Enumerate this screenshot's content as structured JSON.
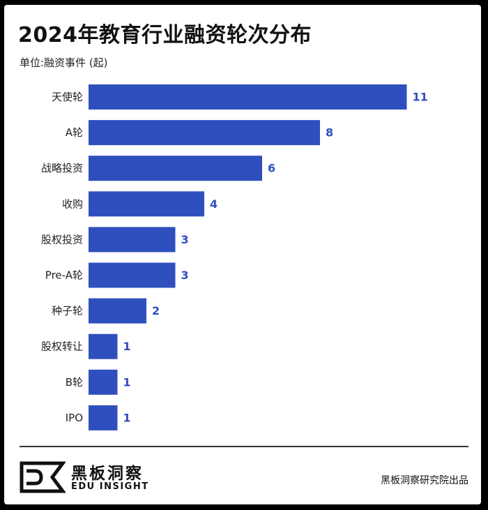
{
  "header": {
    "title": "2024年教育行业融资轮次分布",
    "unit": "单位:融资事件 (起)"
  },
  "chart_data": {
    "type": "bar",
    "orientation": "horizontal",
    "title": "2024年教育行业融资轮次分布",
    "ylabel": "单位:融资事件 (起)",
    "categories": [
      "天使轮",
      "A轮",
      "战略投资",
      "收购",
      "股权投资",
      "Pre-A轮",
      "种子轮",
      "股权转让",
      "B轮",
      "IPO"
    ],
    "values": [
      11,
      8,
      6,
      4,
      3,
      3,
      2,
      1,
      1,
      1
    ],
    "bar_color": "#2f4fbf",
    "label_color": "#2f4fbf",
    "data_labels": true,
    "grid": false
  },
  "footer": {
    "logo_cn": "黑板洞察",
    "logo_en": "EDU INSIGHT",
    "source": "黑板洞察研究院出品"
  }
}
